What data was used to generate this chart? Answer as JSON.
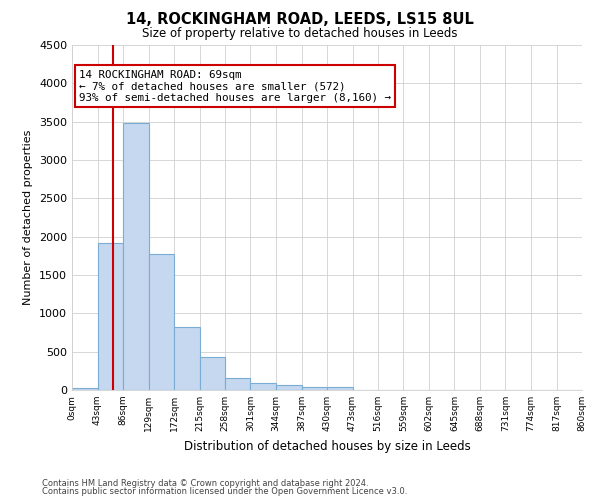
{
  "title1": "14, ROCKINGHAM ROAD, LEEDS, LS15 8UL",
  "title2": "Size of property relative to detached houses in Leeds",
  "xlabel": "Distribution of detached houses by size in Leeds",
  "ylabel": "Number of detached properties",
  "bin_edges": [
    0,
    43,
    86,
    129,
    172,
    215,
    258,
    301,
    344,
    387,
    430,
    473,
    516,
    559,
    602,
    645,
    688,
    731,
    774,
    817,
    860
  ],
  "bin_labels": [
    "0sqm",
    "43sqm",
    "86sqm",
    "129sqm",
    "172sqm",
    "215sqm",
    "258sqm",
    "301sqm",
    "344sqm",
    "387sqm",
    "430sqm",
    "473sqm",
    "516sqm",
    "559sqm",
    "602sqm",
    "645sqm",
    "688sqm",
    "731sqm",
    "774sqm",
    "817sqm",
    "860sqm"
  ],
  "bar_heights": [
    30,
    1920,
    3480,
    1780,
    820,
    430,
    155,
    95,
    60,
    45,
    40,
    0,
    0,
    0,
    0,
    0,
    0,
    0,
    0,
    0
  ],
  "bar_color": "#c5d8f0",
  "bar_edge_color": "#7badd4",
  "property_size": 69,
  "red_line_color": "#cc0000",
  "ylim": [
    0,
    4500
  ],
  "yticks": [
    0,
    500,
    1000,
    1500,
    2000,
    2500,
    3000,
    3500,
    4000,
    4500
  ],
  "annotation_title": "14 ROCKINGHAM ROAD: 69sqm",
  "annotation_line1": "← 7% of detached houses are smaller (572)",
  "annotation_line2": "93% of semi-detached houses are larger (8,160) →",
  "annotation_box_color": "#ffffff",
  "annotation_box_edge": "#cc0000",
  "footer1": "Contains HM Land Registry data © Crown copyright and database right 2024.",
  "footer2": "Contains public sector information licensed under the Open Government Licence v3.0.",
  "background_color": "#ffffff",
  "grid_color": "#d0d0d0"
}
